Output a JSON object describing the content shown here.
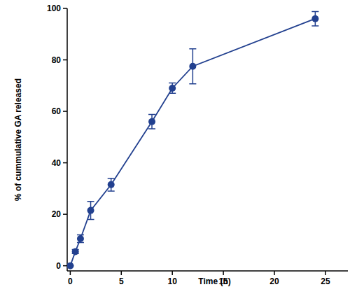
{
  "chart_data": {
    "type": "line",
    "x_label": "Time (h)",
    "y_label": "% of cummulative GA released",
    "x": [
      0,
      0.5,
      1,
      2,
      4,
      8,
      10,
      12,
      24
    ],
    "series": [
      {
        "name": "GA",
        "color": "#22408f",
        "marker": "circle",
        "line_style": "solid",
        "values": [
          0,
          5.5,
          10.5,
          21.5,
          31.5,
          56,
          69,
          77.5,
          96
        ],
        "errors": [
          0,
          0.8,
          1.5,
          3.5,
          2.5,
          2.8,
          2,
          6.8,
          2.8
        ]
      }
    ],
    "xlim": [
      -0.3,
      27.2
    ],
    "xticks": [
      0,
      5,
      10,
      15,
      20,
      25
    ],
    "ylim": [
      -2,
      100
    ],
    "yticks": [
      0,
      20,
      40,
      60,
      80,
      100
    ],
    "grid": false
  }
}
